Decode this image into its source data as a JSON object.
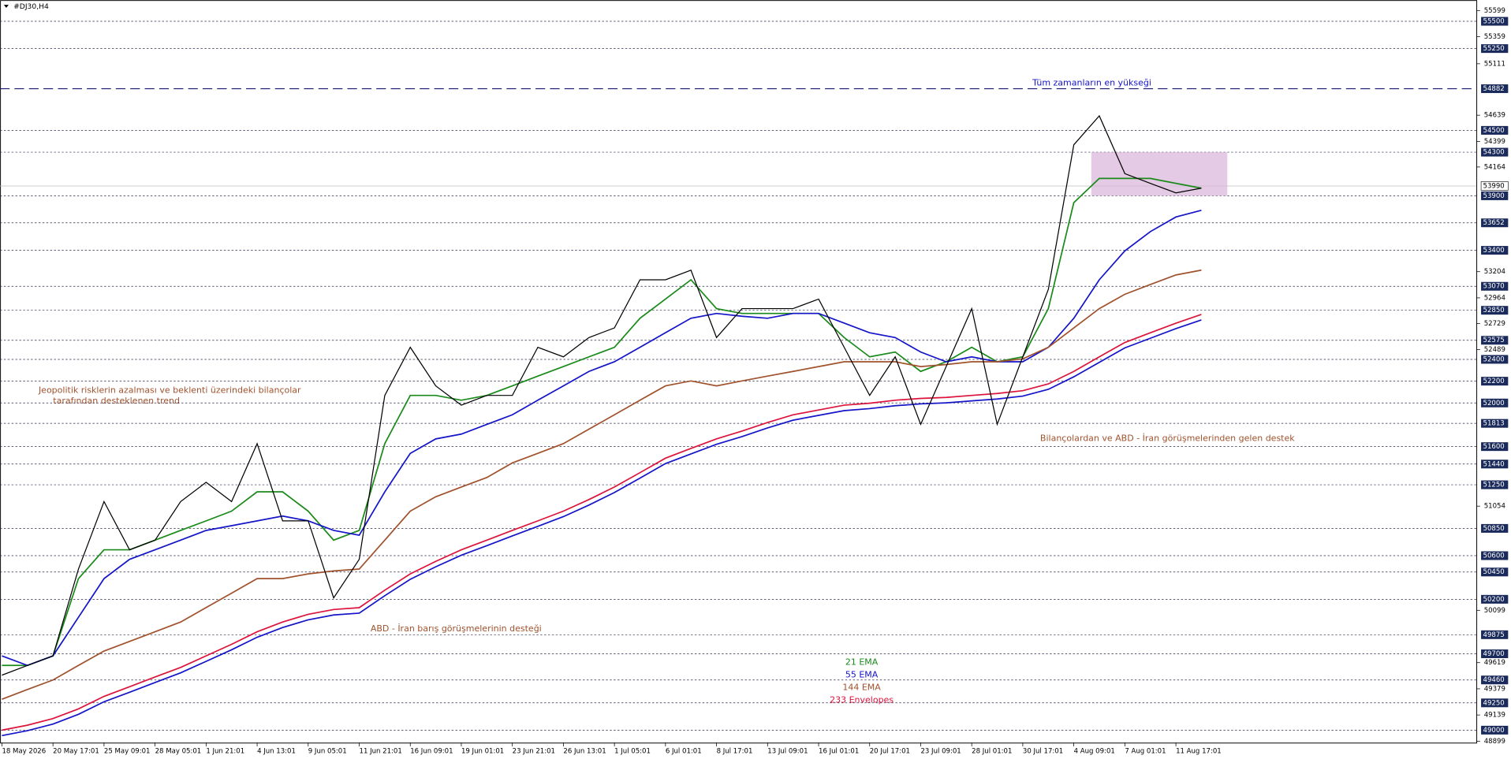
{
  "chart_data": {
    "type": "line",
    "title": "#DJ30,H4",
    "categories": [
      "18 May 2026",
      null,
      "20 May 17:01",
      null,
      "25 May 09:01",
      null,
      "28 May 05:01",
      null,
      "1 Jun 21:01",
      null,
      "4 Jun 13:01",
      null,
      "9 Jun 05:01",
      null,
      "11 Jun 21:01",
      null,
      "16 Jun 09:01",
      null,
      "19 Jun 01:01",
      null,
      "23 Jun 21:01",
      null,
      "26 Jun 13:01",
      null,
      "1 Jul 05:01",
      null,
      "6 Jul 01:01",
      null,
      "8 Jul 17:01",
      null,
      "13 Jul 09:01",
      null,
      "16 Jul 01:01",
      null,
      "20 Jul 17:01",
      null,
      "23 Jul 09:01",
      null,
      "28 Jul 01:01",
      null,
      "30 Jul 17:01",
      null,
      "4 Aug 09:01",
      null,
      "7 Aug 01:01",
      null,
      "11 Aug 17:01",
      null
    ],
    "price": {
      "color": "#000000",
      "values": [
        49504,
        49593,
        49681,
        50477,
        51096,
        50654,
        50742,
        51096,
        51273,
        51096,
        51627,
        50919,
        50919,
        50212,
        50566,
        52069,
        52511,
        52157,
        51980,
        52069,
        52069,
        52511,
        52423,
        52600,
        52688,
        53130,
        53130,
        53218,
        52600,
        52865,
        52865,
        52865,
        52953,
        52511,
        52069,
        52423,
        51804,
        52334,
        52865,
        51804,
        52423,
        53042,
        54368,
        54633,
        54103,
        54014,
        53926,
        53970
      ]
    },
    "series": [
      {
        "name": "21 EMA",
        "color": "#1a8a1a",
        "values": [
          49593,
          49593,
          49681,
          50389,
          50654,
          50654,
          50742,
          50831,
          50919,
          51008,
          51185,
          51185,
          51008,
          50742,
          50831,
          51627,
          52069,
          52069,
          52025,
          52069,
          52157,
          52246,
          52334,
          52423,
          52511,
          52777,
          52953,
          53130,
          52865,
          52821,
          52821,
          52821,
          52821,
          52600,
          52423,
          52467,
          52290,
          52378,
          52511,
          52378,
          52423,
          52865,
          53837,
          54059,
          54059,
          54059,
          54014,
          53970
        ]
      },
      {
        "name": "55 EMA",
        "color": "#1414c8",
        "values": [
          49681,
          49593,
          49681,
          50035,
          50389,
          50566,
          50654,
          50742,
          50831,
          50875,
          50919,
          50963,
          50919,
          50831,
          50787,
          51185,
          51538,
          51671,
          51715,
          51804,
          51892,
          52025,
          52157,
          52290,
          52378,
          52511,
          52644,
          52777,
          52821,
          52795,
          52777,
          52821,
          52821,
          52733,
          52644,
          52600,
          52467,
          52378,
          52423,
          52378,
          52378,
          52511,
          52777,
          53130,
          53395,
          53572,
          53705,
          53767
        ]
      },
      {
        "name": "144 EMA",
        "color": "#a0522d",
        "values": [
          49283,
          49372,
          49460,
          49593,
          49725,
          49814,
          49902,
          49991,
          50124,
          50256,
          50389,
          50389,
          50433,
          50460,
          50477,
          50742,
          51008,
          51140,
          51229,
          51317,
          51450,
          51538,
          51627,
          51760,
          51892,
          52025,
          52157,
          52202,
          52157,
          52202,
          52246,
          52290,
          52334,
          52378,
          52378,
          52378,
          52334,
          52352,
          52378,
          52378,
          52405,
          52511,
          52688,
          52865,
          52997,
          53086,
          53174,
          53218
        ]
      },
      {
        "name": "233 Envelopes",
        "color": "#dc143c",
        "lower_color": "#1414c8",
        "values": [
          49000,
          49045,
          49106,
          49195,
          49310,
          49398,
          49487,
          49575,
          49681,
          49787,
          49902,
          49991,
          50062,
          50106,
          50123,
          50283,
          50433,
          50548,
          50654,
          50742,
          50831,
          50919,
          51008,
          51114,
          51229,
          51361,
          51494,
          51583,
          51671,
          51742,
          51821,
          51892,
          51936,
          51980,
          51998,
          52025,
          52042,
          52051,
          52069,
          52087,
          52113,
          52175,
          52290,
          52423,
          52555,
          52644,
          52732,
          52812
        ],
        "lower": [
          48950,
          48995,
          49056,
          49145,
          49260,
          49348,
          49437,
          49525,
          49631,
          49737,
          49852,
          49941,
          50012,
          50056,
          50073,
          50233,
          50383,
          50498,
          50604,
          50692,
          50781,
          50869,
          50958,
          51064,
          51179,
          51311,
          51444,
          51533,
          51621,
          51692,
          51771,
          51842,
          51886,
          51930,
          51948,
          51975,
          51992,
          52001,
          52019,
          52037,
          52063,
          52125,
          52240,
          52373,
          52505,
          52594,
          52682,
          52762
        ]
      }
    ],
    "ylim": [
      48886,
      55695
    ],
    "yticks": [
      55599,
      55359,
      55111,
      54639,
      54399,
      54164,
      53204,
      52964,
      52729,
      52489,
      51054,
      50099,
      49619,
      49379,
      49139,
      48899
    ],
    "levels": [
      55500,
      55250,
      54882,
      54500,
      54300,
      53990,
      53900,
      53652,
      53400,
      53070,
      52850,
      52575,
      52400,
      52200,
      52000,
      51813,
      51600,
      51440,
      51250,
      50850,
      50600,
      50450,
      50200,
      49875,
      49700,
      49460,
      49250,
      49000
    ],
    "annotations": {
      "high": "Tüm zamanların en yükseği",
      "trend1": "Jeopolitik risklerin azalması ve beklenti üzerindeki bilançolar",
      "trend2": "tarafından desteklenen trend",
      "support1": "ABD - İran barış görüşmelerinin desteği",
      "support2": "Bilançolardan ve ABD - İran görüşmelerinden gelen destek"
    }
  }
}
